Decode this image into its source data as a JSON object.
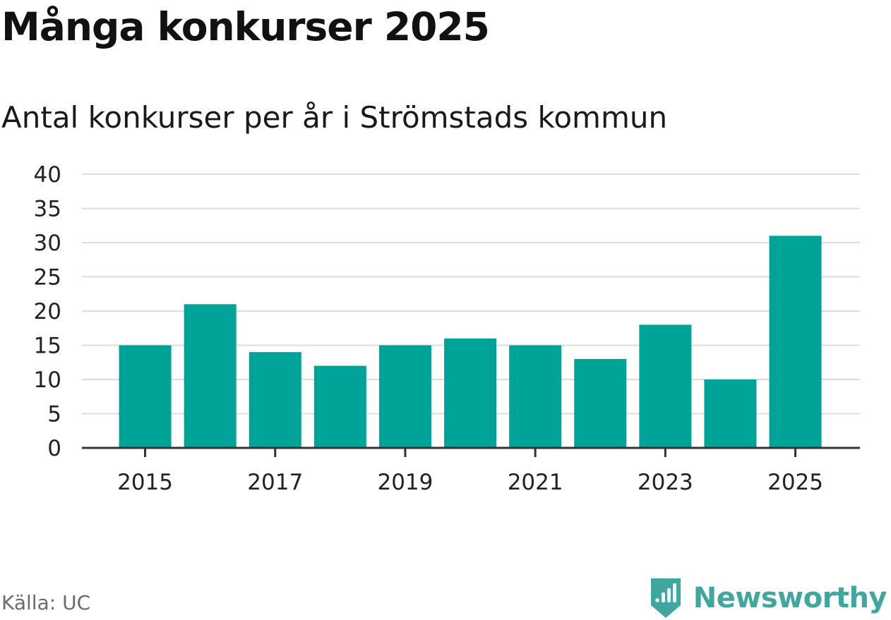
{
  "header": {
    "title": "Många konkurser 2025",
    "subtitle": "Antal konkurser per år i Strömstads kommun"
  },
  "footer": {
    "source": "Källa: UC",
    "brand": "Newsworthy"
  },
  "colors": {
    "bar": "#00a398",
    "grid": "#dcdcdc",
    "axis": "#333333",
    "brand": "#3fa79d"
  },
  "chart_data": {
    "type": "bar",
    "title": "Många konkurser 2025",
    "subtitle": "Antal konkurser per år i Strömstads kommun",
    "xlabel": "",
    "ylabel": "",
    "categories": [
      "2015",
      "2016",
      "2017",
      "2018",
      "2019",
      "2020",
      "2021",
      "2022",
      "2023",
      "2024",
      "2025"
    ],
    "values": [
      15,
      21,
      14,
      12,
      15,
      16,
      15,
      13,
      18,
      10,
      31
    ],
    "x_tick_labels": [
      "2015",
      "2017",
      "2019",
      "2021",
      "2023",
      "2025"
    ],
    "y_ticks": [
      0,
      5,
      10,
      15,
      20,
      25,
      30,
      35,
      40
    ],
    "ylim": [
      0,
      40
    ],
    "grid": true,
    "legend": "none"
  }
}
